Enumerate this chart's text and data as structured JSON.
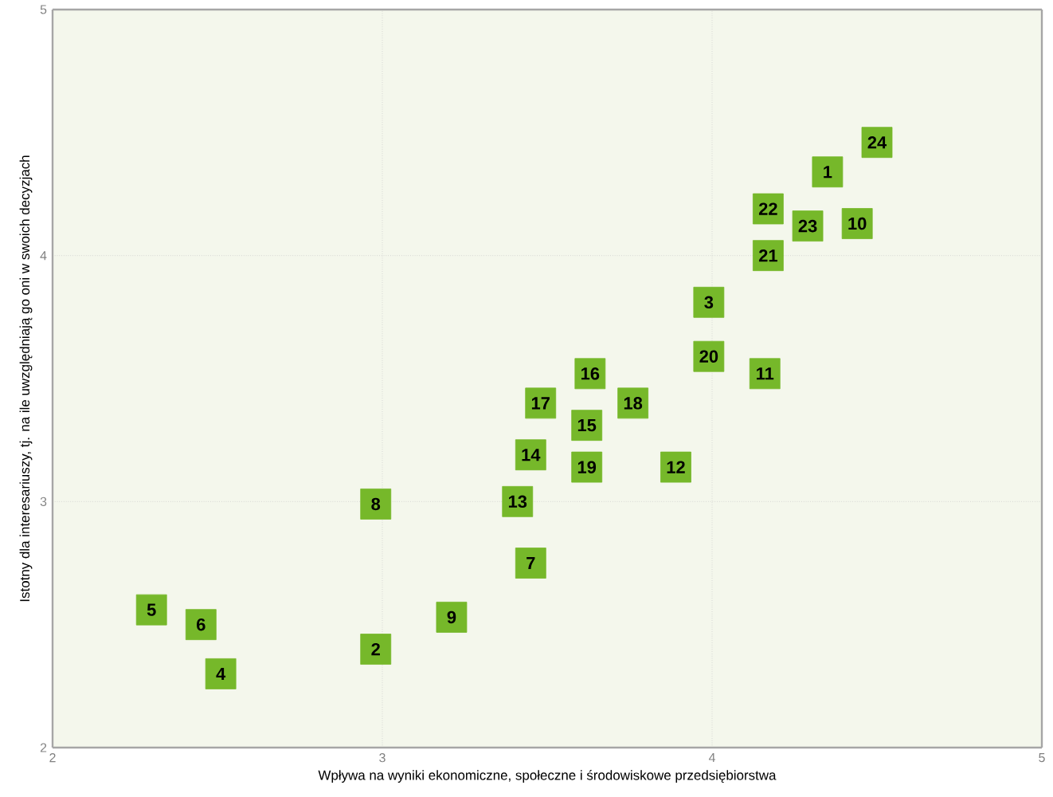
{
  "chart_data": {
    "type": "scatter",
    "xlabel": "Wpływa na wyniki ekonomiczne, społeczne i środowiskowe przedsiębiorstwa",
    "ylabel": "Istotny dla interesariuszy, tj. na ile uwzględniają go oni w swoich decyzjach",
    "x": [
      4.35,
      2.98,
      3.99,
      2.51,
      2.3,
      2.45,
      3.45,
      2.98,
      3.21,
      4.44,
      4.16,
      3.89,
      3.41,
      3.45,
      3.62,
      3.63,
      3.48,
      3.76,
      3.62,
      3.99,
      4.17,
      4.17,
      4.29,
      4.5
    ],
    "values": [
      4.34,
      2.4,
      3.81,
      2.3,
      2.56,
      2.5,
      2.75,
      2.99,
      2.53,
      4.13,
      3.52,
      3.14,
      3.0,
      3.19,
      3.31,
      3.52,
      3.4,
      3.4,
      3.14,
      3.59,
      4.0,
      4.19,
      4.12,
      4.46
    ],
    "color": "#76b82a",
    "marker": "square",
    "xlim": [
      2,
      5
    ],
    "ylim": [
      2,
      5
    ],
    "xticks": [
      2,
      3,
      4,
      5
    ],
    "yticks": [
      2,
      3,
      4,
      5
    ],
    "grid": true,
    "annotations": [
      {
        "text": "1",
        "x": 4.35,
        "y": 4.34
      },
      {
        "text": "2",
        "x": 2.98,
        "y": 2.4
      },
      {
        "text": "3",
        "x": 3.99,
        "y": 3.81
      },
      {
        "text": "4",
        "x": 2.51,
        "y": 2.3
      },
      {
        "text": "5",
        "x": 2.3,
        "y": 2.56
      },
      {
        "text": "6",
        "x": 2.45,
        "y": 2.5
      },
      {
        "text": "7",
        "x": 3.45,
        "y": 2.75
      },
      {
        "text": "8",
        "x": 2.98,
        "y": 2.99
      },
      {
        "text": "9",
        "x": 3.21,
        "y": 2.53
      },
      {
        "text": "10",
        "x": 4.44,
        "y": 4.13
      },
      {
        "text": "11",
        "x": 4.16,
        "y": 3.52
      },
      {
        "text": "12",
        "x": 3.89,
        "y": 3.14
      },
      {
        "text": "13",
        "x": 3.41,
        "y": 3.0
      },
      {
        "text": "14",
        "x": 3.45,
        "y": 3.19
      },
      {
        "text": "15",
        "x": 3.62,
        "y": 3.31
      },
      {
        "text": "16",
        "x": 3.63,
        "y": 3.52
      },
      {
        "text": "17",
        "x": 3.48,
        "y": 3.4
      },
      {
        "text": "18",
        "x": 3.76,
        "y": 3.4
      },
      {
        "text": "19",
        "x": 3.62,
        "y": 3.14
      },
      {
        "text": "20",
        "x": 3.99,
        "y": 3.59
      },
      {
        "text": "21",
        "x": 4.17,
        "y": 4.0
      },
      {
        "text": "22",
        "x": 4.17,
        "y": 4.19
      },
      {
        "text": "23",
        "x": 4.29,
        "y": 4.12
      },
      {
        "text": "24",
        "x": 4.5,
        "y": 4.46
      }
    ]
  }
}
